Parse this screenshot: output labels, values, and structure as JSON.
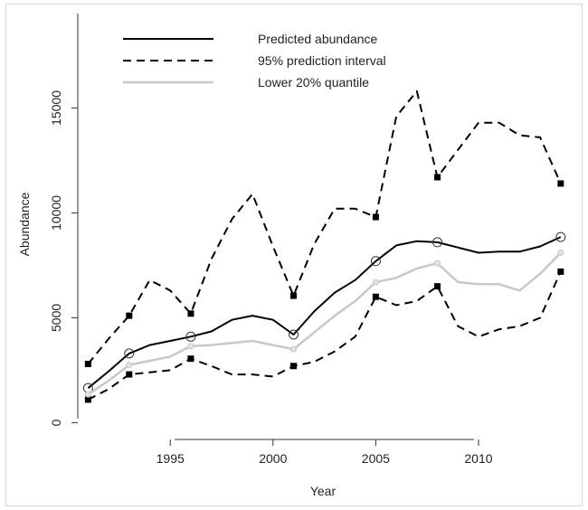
{
  "chart_data": {
    "type": "line",
    "xlabel": "Year",
    "ylabel": "Abundance",
    "xlim": [
      1990.5,
      2014.8
    ],
    "ylim": [
      -800,
      19500
    ],
    "xticks": [
      1995,
      2000,
      2005,
      2010
    ],
    "yticks": [
      0,
      5000,
      10000,
      15000
    ],
    "legend_position": "top-left",
    "series": [
      {
        "name": "Predicted abundance",
        "style": "solid",
        "color": "#000000",
        "x": [
          1991,
          1992,
          1993,
          1994,
          1995,
          1996,
          1997,
          1998,
          1999,
          2000,
          2001,
          2002,
          2003,
          2004,
          2005,
          2006,
          2007,
          2008,
          2009,
          2010,
          2011,
          2012,
          2013,
          2014
        ],
        "y": [
          1650,
          2450,
          3300,
          3700,
          3900,
          4100,
          4350,
          4900,
          5100,
          4900,
          4200,
          5300,
          6200,
          6800,
          7700,
          8450,
          8650,
          8600,
          8350,
          8100,
          8150,
          8150,
          8400,
          8850
        ],
        "markers": {
          "x": [
            1991,
            1993,
            1996,
            2001,
            2005,
            2008,
            2014
          ],
          "y": [
            1650,
            3300,
            4100,
            4200,
            7700,
            8600,
            8850
          ],
          "shape": "open-circle"
        }
      },
      {
        "name": "95% prediction interval",
        "style": "dashed",
        "color": "#000000",
        "x": [
          1991,
          1992,
          1993,
          1994,
          1995,
          1996,
          1997,
          1998,
          1999,
          2000,
          2001,
          2002,
          2003,
          2004,
          2005,
          2006,
          2007,
          2008,
          2009,
          2010,
          2011,
          2012,
          2013,
          2014
        ],
        "y": [
          2800,
          4000,
          5100,
          6800,
          6300,
          5200,
          7800,
          9700,
          10900,
          8400,
          6050,
          8500,
          10200,
          10200,
          9800,
          14600,
          15800,
          11700,
          13000,
          14300,
          14300,
          13700,
          13600,
          11400
        ],
        "markers": {
          "x": [
            1991,
            1993,
            1996,
            2001,
            2005,
            2008,
            2014
          ],
          "y": [
            2800,
            5100,
            5200,
            6050,
            9800,
            11700,
            11400
          ],
          "shape": "filled-square"
        }
      },
      {
        "name": "",
        "style": "dashed",
        "color": "#000000",
        "x": [
          1991,
          1992,
          1993,
          1994,
          1995,
          1996,
          1997,
          1998,
          1999,
          2000,
          2001,
          2002,
          2003,
          2004,
          2005,
          2006,
          2007,
          2008,
          2009,
          2010,
          2011,
          2012,
          2013,
          2014
        ],
        "y": [
          1100,
          1600,
          2300,
          2400,
          2500,
          3050,
          2700,
          2300,
          2300,
          2200,
          2700,
          2900,
          3400,
          4100,
          6000,
          5600,
          5800,
          6500,
          4600,
          4100,
          4450,
          4600,
          5000,
          7200
        ],
        "markers": {
          "x": [
            1991,
            1993,
            1996,
            2001,
            2005,
            2008,
            2014
          ],
          "y": [
            1100,
            2300,
            3050,
            2700,
            6000,
            6500,
            7200
          ],
          "shape": "filled-square"
        }
      },
      {
        "name": "Lower 20% quantile",
        "style": "solid",
        "color": "#c8c8c8",
        "x": [
          1991,
          1992,
          1993,
          1994,
          1995,
          1996,
          1997,
          1998,
          1999,
          2000,
          2001,
          2002,
          2003,
          2004,
          2005,
          2006,
          2007,
          2008,
          2009,
          2010,
          2011,
          2012,
          2013,
          2014
        ],
        "y": [
          1350,
          2000,
          2750,
          2950,
          3150,
          3650,
          3700,
          3800,
          3900,
          3700,
          3500,
          4300,
          5100,
          5800,
          6700,
          6900,
          7350,
          7600,
          6700,
          6600,
          6600,
          6300,
          7100,
          8100
        ],
        "markers": {
          "x": [
            1991,
            1993,
            1996,
            2001,
            2005,
            2008,
            2014
          ],
          "y": [
            1350,
            2750,
            3650,
            3500,
            6700,
            7600,
            8100
          ],
          "shape": "light-circle"
        }
      }
    ]
  }
}
